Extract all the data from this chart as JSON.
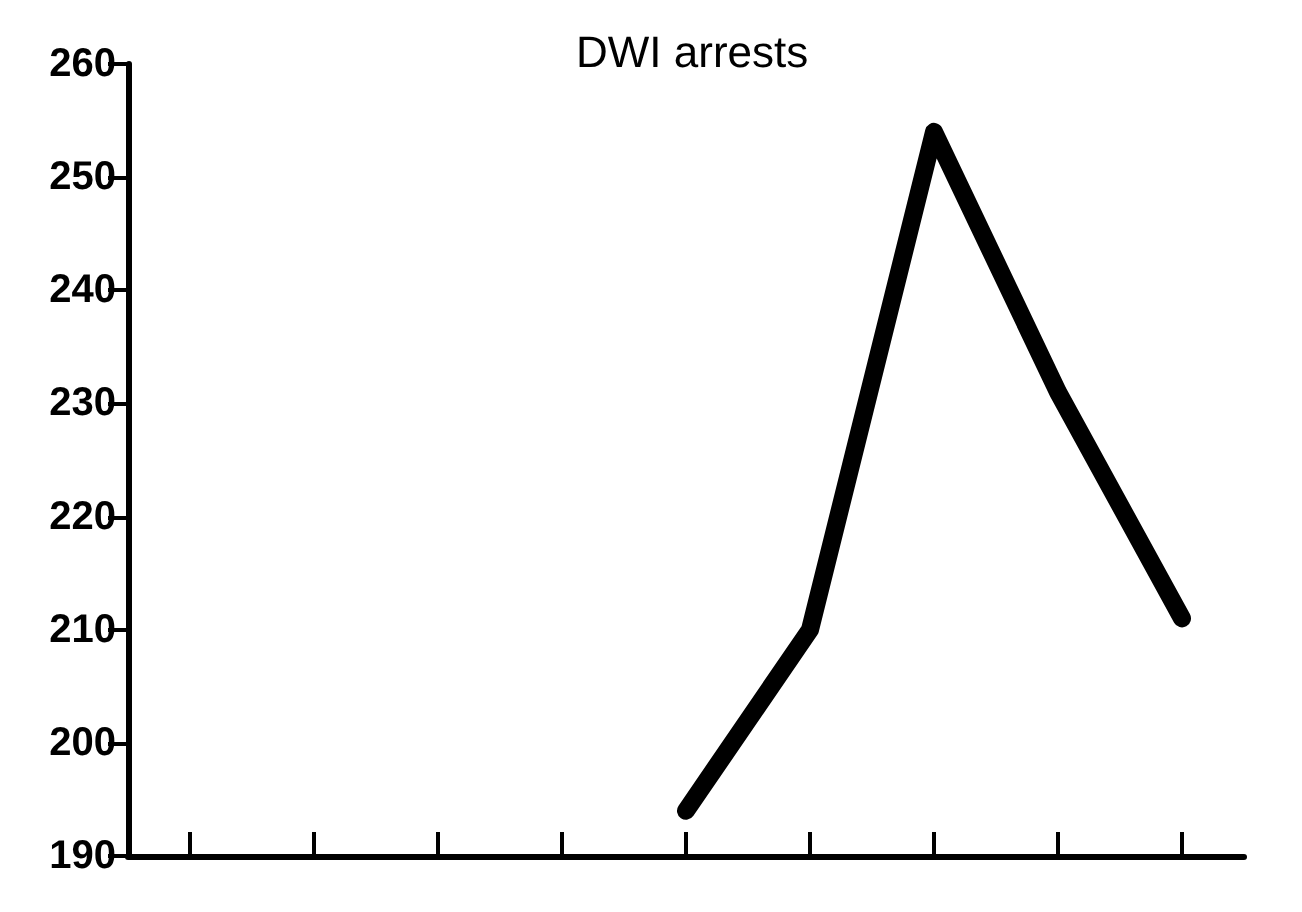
{
  "chart_data": {
    "type": "line",
    "title": "DWI arrests",
    "categories": [
      null,
      null,
      null,
      null,
      null,
      null,
      null,
      null,
      null
    ],
    "series": [
      {
        "color": "#000000",
        "values": [
          null,
          null,
          null,
          null,
          194,
          210,
          254,
          231,
          211
        ]
      }
    ],
    "ylim": [
      190,
      260
    ],
    "yticks": [
      190,
      200,
      210,
      220,
      230,
      240,
      250,
      260
    ],
    "grid": false,
    "line_style": "solid",
    "tick_labels": "y"
  }
}
